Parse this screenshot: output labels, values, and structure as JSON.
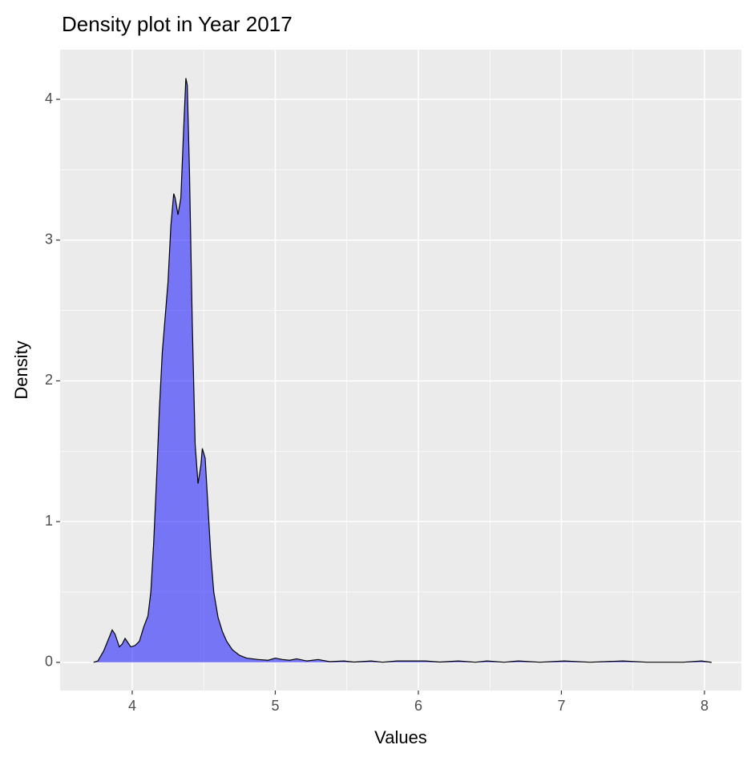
{
  "chart_data": {
    "type": "density",
    "title": "Density plot in Year 2017",
    "x_label": "Values",
    "y_label": "Density",
    "x": [
      3.73,
      3.76,
      3.8,
      3.84,
      3.86,
      3.88,
      3.91,
      3.93,
      3.95,
      3.97,
      3.99,
      4.02,
      4.05,
      4.08,
      4.11,
      4.13,
      4.15,
      4.17,
      4.19,
      4.21,
      4.23,
      4.25,
      4.27,
      4.29,
      4.3,
      4.32,
      4.34,
      4.36,
      4.375,
      4.385,
      4.4,
      4.42,
      4.44,
      4.46,
      4.48,
      4.49,
      4.51,
      4.53,
      4.55,
      4.57,
      4.6,
      4.63,
      4.66,
      4.7,
      4.75,
      4.8,
      4.88,
      4.95,
      5.0,
      5.05,
      5.1,
      5.15,
      5.22,
      5.3,
      5.38,
      5.48,
      5.55,
      5.67,
      5.75,
      5.85,
      5.94,
      6.05,
      6.15,
      6.28,
      6.4,
      6.48,
      6.6,
      6.7,
      6.85,
      7.02,
      7.2,
      7.43,
      7.6,
      7.85,
      7.98,
      8.05
    ],
    "y": [
      0,
      0.01,
      0.08,
      0.18,
      0.23,
      0.2,
      0.11,
      0.13,
      0.17,
      0.14,
      0.11,
      0.12,
      0.15,
      0.25,
      0.33,
      0.5,
      0.85,
      1.3,
      1.8,
      2.2,
      2.45,
      2.7,
      3.1,
      3.33,
      3.3,
      3.18,
      3.3,
      3.8,
      4.15,
      4.1,
      3.5,
      2.4,
      1.55,
      1.27,
      1.4,
      1.52,
      1.45,
      1.1,
      0.75,
      0.5,
      0.32,
      0.22,
      0.15,
      0.09,
      0.05,
      0.03,
      0.02,
      0.015,
      0.03,
      0.02,
      0.015,
      0.025,
      0.01,
      0.02,
      0.005,
      0.01,
      0.002,
      0.01,
      0.001,
      0.01,
      0.01,
      0.01,
      0.002,
      0.01,
      0.001,
      0.01,
      0.001,
      0.01,
      0.001,
      0.01,
      0.001,
      0.01,
      0.001,
      0.001,
      0.01,
      0
    ],
    "fill_color": "#0000ff",
    "fill_alpha": 0.5,
    "line_color": "#000000",
    "xlim": [
      3.496,
      8.258
    ],
    "ylim": [
      -0.2,
      4.353
    ],
    "xticks": [
      4,
      5,
      6,
      7,
      8
    ],
    "yticks": [
      0,
      1,
      2,
      3,
      4
    ],
    "xminor": [
      4.5,
      5.5,
      6.5,
      7.5
    ],
    "yminor": [
      0.5,
      1.5,
      2.5,
      3.5
    ],
    "grid": true
  }
}
